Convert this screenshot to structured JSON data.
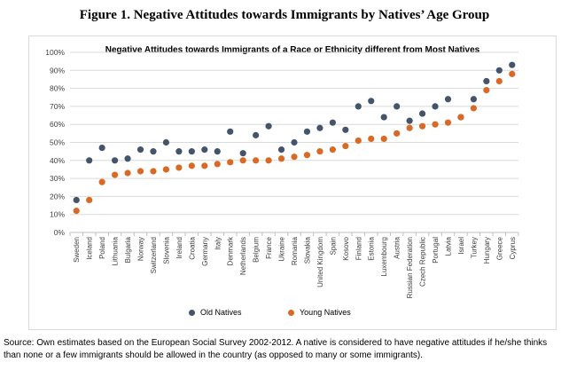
{
  "figure_title": "Figure 1. Negative Attitudes towards Immigrants by Natives’ Age Group",
  "source_note": "Source: Own estimates based on the European Social Survey 2002-2012. A native is considered to have negative attitudes if he/she thinks than none or a few immigrants should be allowed in the country (as opposed to many or some immigrants).",
  "colors": {
    "old": "#44546a",
    "young": "#d86a26",
    "grid": "#d9d9d9",
    "axis": "#bfbfbf"
  },
  "chart_data": {
    "type": "scatter",
    "title": "Negative Attitudes towards Immigrants of a Race or Ethnicity different from Most Natives",
    "xlabel": "",
    "ylabel": "",
    "ylim": [
      0,
      100
    ],
    "yticks": [
      "0%",
      "10%",
      "20%",
      "30%",
      "40%",
      "50%",
      "60%",
      "70%",
      "80%",
      "90%",
      "100%"
    ],
    "categories": [
      "Sweden",
      "Iceland",
      "Poland",
      "Lithuania",
      "Bulgaria",
      "Norway",
      "Switzerland",
      "Slovenia",
      "Ireland",
      "Croatia",
      "Germany",
      "Italy",
      "Denmark",
      "Netherlands",
      "Belgium",
      "France",
      "Ukraine",
      "Romania",
      "Slovakia",
      "United Kingdom",
      "Spain",
      "Kosovo",
      "Finland",
      "Estonia",
      "Luxembourg",
      "Austria",
      "Russian Federation",
      "Czech Republic",
      "Portugal",
      "Latvia",
      "Israel",
      "Turkey",
      "Hungary",
      "Greece",
      "Cyprus"
    ],
    "series": [
      {
        "name": "Old Natives",
        "values": [
          18,
          40,
          47,
          40,
          41,
          46,
          45,
          50,
          45,
          45,
          46,
          45,
          56,
          44,
          54,
          59,
          46,
          50,
          56,
          58,
          61,
          57,
          70,
          73,
          64,
          70,
          62,
          66,
          70,
          74,
          64,
          74,
          84,
          90,
          93
        ]
      },
      {
        "name": "Young Natives",
        "values": [
          12,
          18,
          28,
          32,
          33,
          34,
          34,
          35,
          36,
          37,
          37,
          38,
          39,
          40,
          40,
          40,
          41,
          42,
          43,
          45,
          46,
          48,
          51,
          52,
          52,
          55,
          58,
          59,
          60,
          61,
          64,
          69,
          79,
          84,
          88
        ]
      }
    ],
    "legend": [
      "Old Natives",
      "Young Natives"
    ],
    "legend_position": "bottom"
  }
}
